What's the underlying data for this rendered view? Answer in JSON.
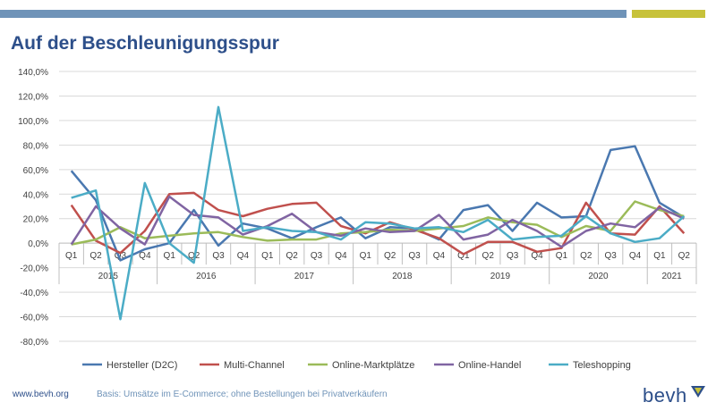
{
  "header": {
    "title": "Auf der Beschleunigungsspur",
    "bar_colors": [
      "#6f93b8",
      "#c7c23a"
    ]
  },
  "footer": {
    "url": "www.bevh.org",
    "note": "Basis: Umsätze im E-Commerce; ohne Bestellungen bei Privatverkäufern",
    "logo": "bevh",
    "logo_icon": "bevh-logo-icon"
  },
  "chart_data": {
    "type": "line",
    "ylim": [
      -80,
      140
    ],
    "y_ticks": [
      -80,
      -60,
      -40,
      -20,
      0,
      20,
      40,
      60,
      80,
      100,
      120,
      140
    ],
    "y_tick_labels": [
      "-80,0%",
      "-60,0%",
      "-40,0%",
      "-20,0%",
      "0,0%",
      "20,0%",
      "40,0%",
      "60,0%",
      "80,0%",
      "100,0%",
      "120,0%",
      "140,0%"
    ],
    "categories": [
      "Q1",
      "Q2",
      "Q3",
      "Q4",
      "Q1",
      "Q2",
      "Q3",
      "Q4",
      "Q1",
      "Q2",
      "Q3",
      "Q4",
      "Q1",
      "Q2",
      "Q3",
      "Q4",
      "Q1",
      "Q2",
      "Q3",
      "Q4",
      "Q1",
      "Q2",
      "Q3",
      "Q4",
      "Q1",
      "Q2"
    ],
    "years": [
      {
        "label": "2015",
        "count": 4
      },
      {
        "label": "2016",
        "count": 4
      },
      {
        "label": "2017",
        "count": 4
      },
      {
        "label": "2018",
        "count": 4
      },
      {
        "label": "2019",
        "count": 4
      },
      {
        "label": "2020",
        "count": 4
      },
      {
        "label": "2021",
        "count": 2
      }
    ],
    "grid": true,
    "legend_position": "bottom",
    "series": [
      {
        "name": "Hersteller (D2C)",
        "color": "#4a78b0",
        "values": [
          59,
          35,
          -14,
          -5,
          0,
          27,
          -2,
          16,
          12,
          4,
          13,
          21,
          4,
          13,
          12,
          3,
          27,
          31,
          10,
          33,
          21,
          22,
          76,
          79,
          33,
          21
        ]
      },
      {
        "name": "Multi-Channel",
        "color": "#c0504d",
        "values": [
          31,
          2,
          -8,
          10,
          40,
          41,
          27,
          22,
          28,
          32,
          33,
          14,
          8,
          17,
          11,
          4,
          -9,
          1,
          1,
          -7,
          -4,
          33,
          8,
          7,
          30,
          8
        ]
      },
      {
        "name": "Online-Marktplätze",
        "color": "#9bbb59",
        "values": [
          -1,
          3,
          13,
          4,
          6,
          8,
          9,
          5,
          2,
          3,
          3,
          8,
          9,
          11,
          10,
          12,
          14,
          21,
          17,
          15,
          5,
          14,
          10,
          34,
          27,
          22
        ]
      },
      {
        "name": "Online-Handel",
        "color": "#8064a2",
        "values": [
          -1,
          30,
          12,
          -1,
          38,
          23,
          21,
          7,
          14,
          24,
          9,
          6,
          12,
          9,
          10,
          23,
          3,
          7,
          19,
          10,
          -3,
          10,
          16,
          13,
          29,
          20
        ]
      },
      {
        "name": "Teleshopping",
        "color": "#4bacc6",
        "values": [
          37,
          43,
          -62,
          49,
          0,
          -16,
          111,
          10,
          13,
          10,
          9,
          3,
          17,
          16,
          12,
          13,
          9,
          19,
          3,
          5,
          6,
          22,
          8,
          1,
          4,
          22
        ]
      }
    ]
  }
}
